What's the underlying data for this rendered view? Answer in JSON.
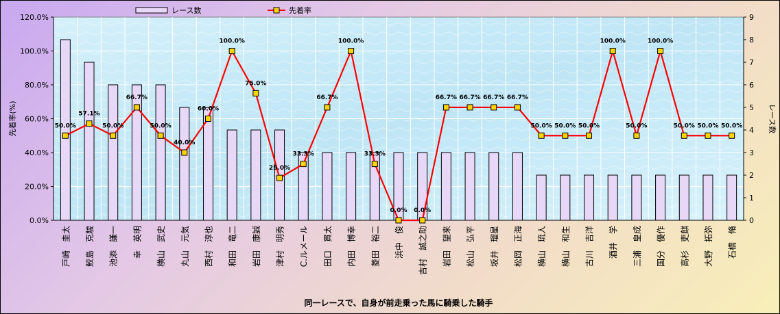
{
  "chart_data": {
    "type": "bar+line",
    "xlabel": "同一レースで、自身が前走乗った馬に騎乗した騎手",
    "y_left_label": "先着率(%)",
    "y_right_label": "レース数",
    "y_left_range": [
      0,
      120
    ],
    "y_left_ticks": [
      "0.0%",
      "20.0%",
      "40.0%",
      "60.0%",
      "80.0%",
      "100.0%",
      "120.0%"
    ],
    "y_right_range": [
      0,
      9
    ],
    "y_right_ticks": [
      "0",
      "1",
      "2",
      "3",
      "4",
      "5",
      "6",
      "7",
      "8",
      "9"
    ],
    "legend": {
      "bar_label": "レース数",
      "line_label": "先着率",
      "position": "top"
    },
    "colors": {
      "bar_fill": "#e8d8f8",
      "bar_stroke": "#000000",
      "line": "#ff0000",
      "marker": "#ffd400",
      "plot_bg": "#bfe6f6"
    },
    "grid": true,
    "categories": [
      "戸崎　圭太",
      "鮫島　克駿",
      "池添　謙一",
      "幸　英明",
      "横山　武史",
      "丸山　元気",
      "西村　淳也",
      "和田　竜二",
      "岩田　康誠",
      "津村　明秀",
      "C.ルメール",
      "田口　貫太",
      "内田　博幸",
      "菱田　裕二",
      "浜中　俊",
      "吉村　誠之助",
      "岩田　望来",
      "松山　弘平",
      "坂井　瑠星",
      "松岡　正海",
      "横山　琉人",
      "横山　和生",
      "古川　吉洋",
      "酒井　学",
      "三浦　皇成",
      "国分　優作",
      "高杉　吏麒",
      "大野　拓弥",
      "石橋　脩"
    ],
    "series": [
      {
        "name": "レース数",
        "type": "bar",
        "axis": "right",
        "values": [
          8,
          7,
          6,
          6,
          6,
          5,
          5,
          4,
          4,
          4,
          3,
          3,
          3,
          3,
          3,
          3,
          3,
          3,
          3,
          3,
          2,
          2,
          2,
          2,
          2,
          2,
          2,
          2,
          2
        ]
      },
      {
        "name": "先着率",
        "type": "line",
        "axis": "left",
        "values": [
          50.0,
          57.1,
          50.0,
          66.7,
          50.0,
          40.0,
          60.0,
          100.0,
          75.0,
          25.0,
          33.3,
          66.7,
          100.0,
          33.3,
          0.0,
          0.0,
          66.7,
          66.7,
          66.7,
          66.7,
          50.0,
          50.0,
          50.0,
          100.0,
          50.0,
          100.0,
          50.0,
          50.0,
          50.0
        ],
        "labels": [
          "50.0%",
          "57.1%",
          "50.0%",
          "66.7%",
          "50.0%",
          "40.0%",
          "60.0%",
          "100.0%",
          "75.0%",
          "25.0%",
          "33.3%",
          "66.7%",
          "100.0%",
          "33.3%",
          "0.0%",
          "0.0%",
          "66.7%",
          "66.7%",
          "66.7%",
          "66.7%",
          "50.0%",
          "50.0%",
          "50.0%",
          "100.0%",
          "50.0%",
          "100.0%",
          "50.0%",
          "50.0%",
          "50.0%"
        ]
      }
    ]
  }
}
